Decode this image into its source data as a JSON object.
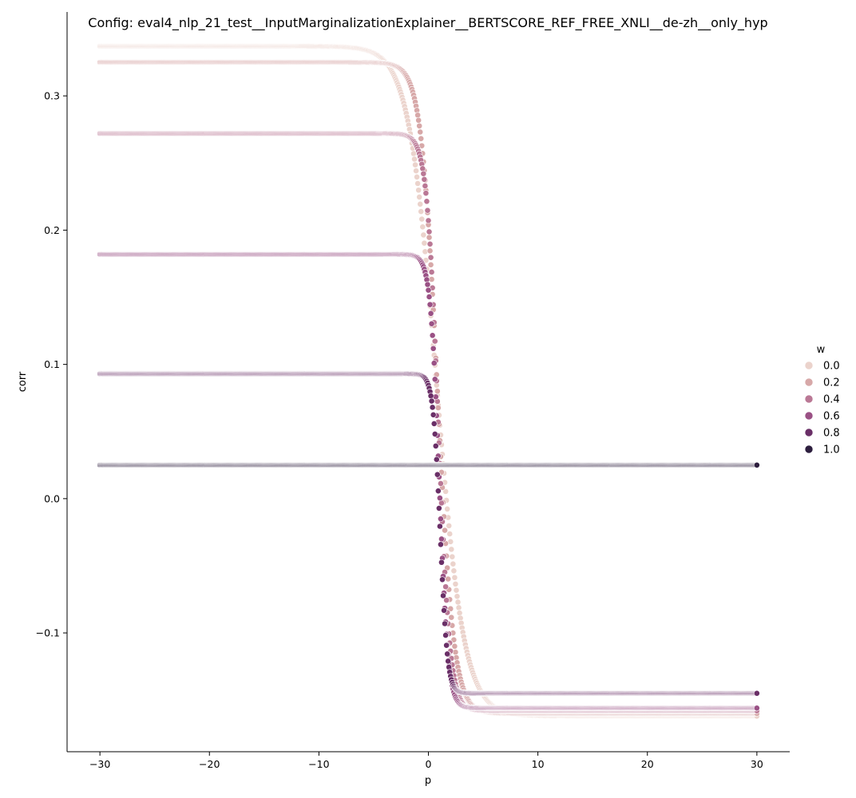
{
  "chart_data": {
    "type": "scatter",
    "title": "Config: eval4_nlp_21_test__InputMarginalizationExplainer__BERTSCORE_REF_FREE_XNLI__de-zh__only_hyp",
    "xlabel": "p",
    "ylabel": "corr",
    "xlim": [
      -33,
      33
    ],
    "ylim": [
      -0.1885,
      0.3625
    ],
    "x_ticks": [
      -30,
      -20,
      -10,
      0,
      10,
      20,
      30
    ],
    "x_tick_labels": [
      "−30",
      "−20",
      "−10",
      "0",
      "10",
      "20",
      "30"
    ],
    "y_ticks": [
      -0.1,
      0.0,
      0.1,
      0.2,
      0.3
    ],
    "y_tick_labels": [
      "−0.1",
      "0.0",
      "0.1",
      "0.2",
      "0.3"
    ],
    "grid": false,
    "legend": {
      "title": "w",
      "placement": "right",
      "entries": [
        "0.0",
        "0.2",
        "0.4",
        "0.6",
        "0.8",
        "1.0"
      ]
    },
    "x_range": [
      -30,
      30
    ],
    "series": [
      {
        "name": "0.0",
        "color": "#ebd3cc",
        "plateau_left": 0.337,
        "plateau_right": -0.162
      },
      {
        "name": "0.2",
        "color": "#d7a8a8",
        "plateau_left": 0.325,
        "plateau_right": -0.16
      },
      {
        "name": "0.4",
        "color": "#ba7895",
        "plateau_left": 0.272,
        "plateau_right": -0.158
      },
      {
        "name": "0.6",
        "color": "#9a5185",
        "plateau_left": 0.182,
        "plateau_right": -0.156
      },
      {
        "name": "0.8",
        "color": "#6a2f67",
        "plateau_left": 0.093,
        "plateau_right": -0.145
      },
      {
        "name": "1.0",
        "color": "#2d1e3e",
        "plateau_left": 0.025,
        "plateau_right": 0.025
      }
    ]
  }
}
